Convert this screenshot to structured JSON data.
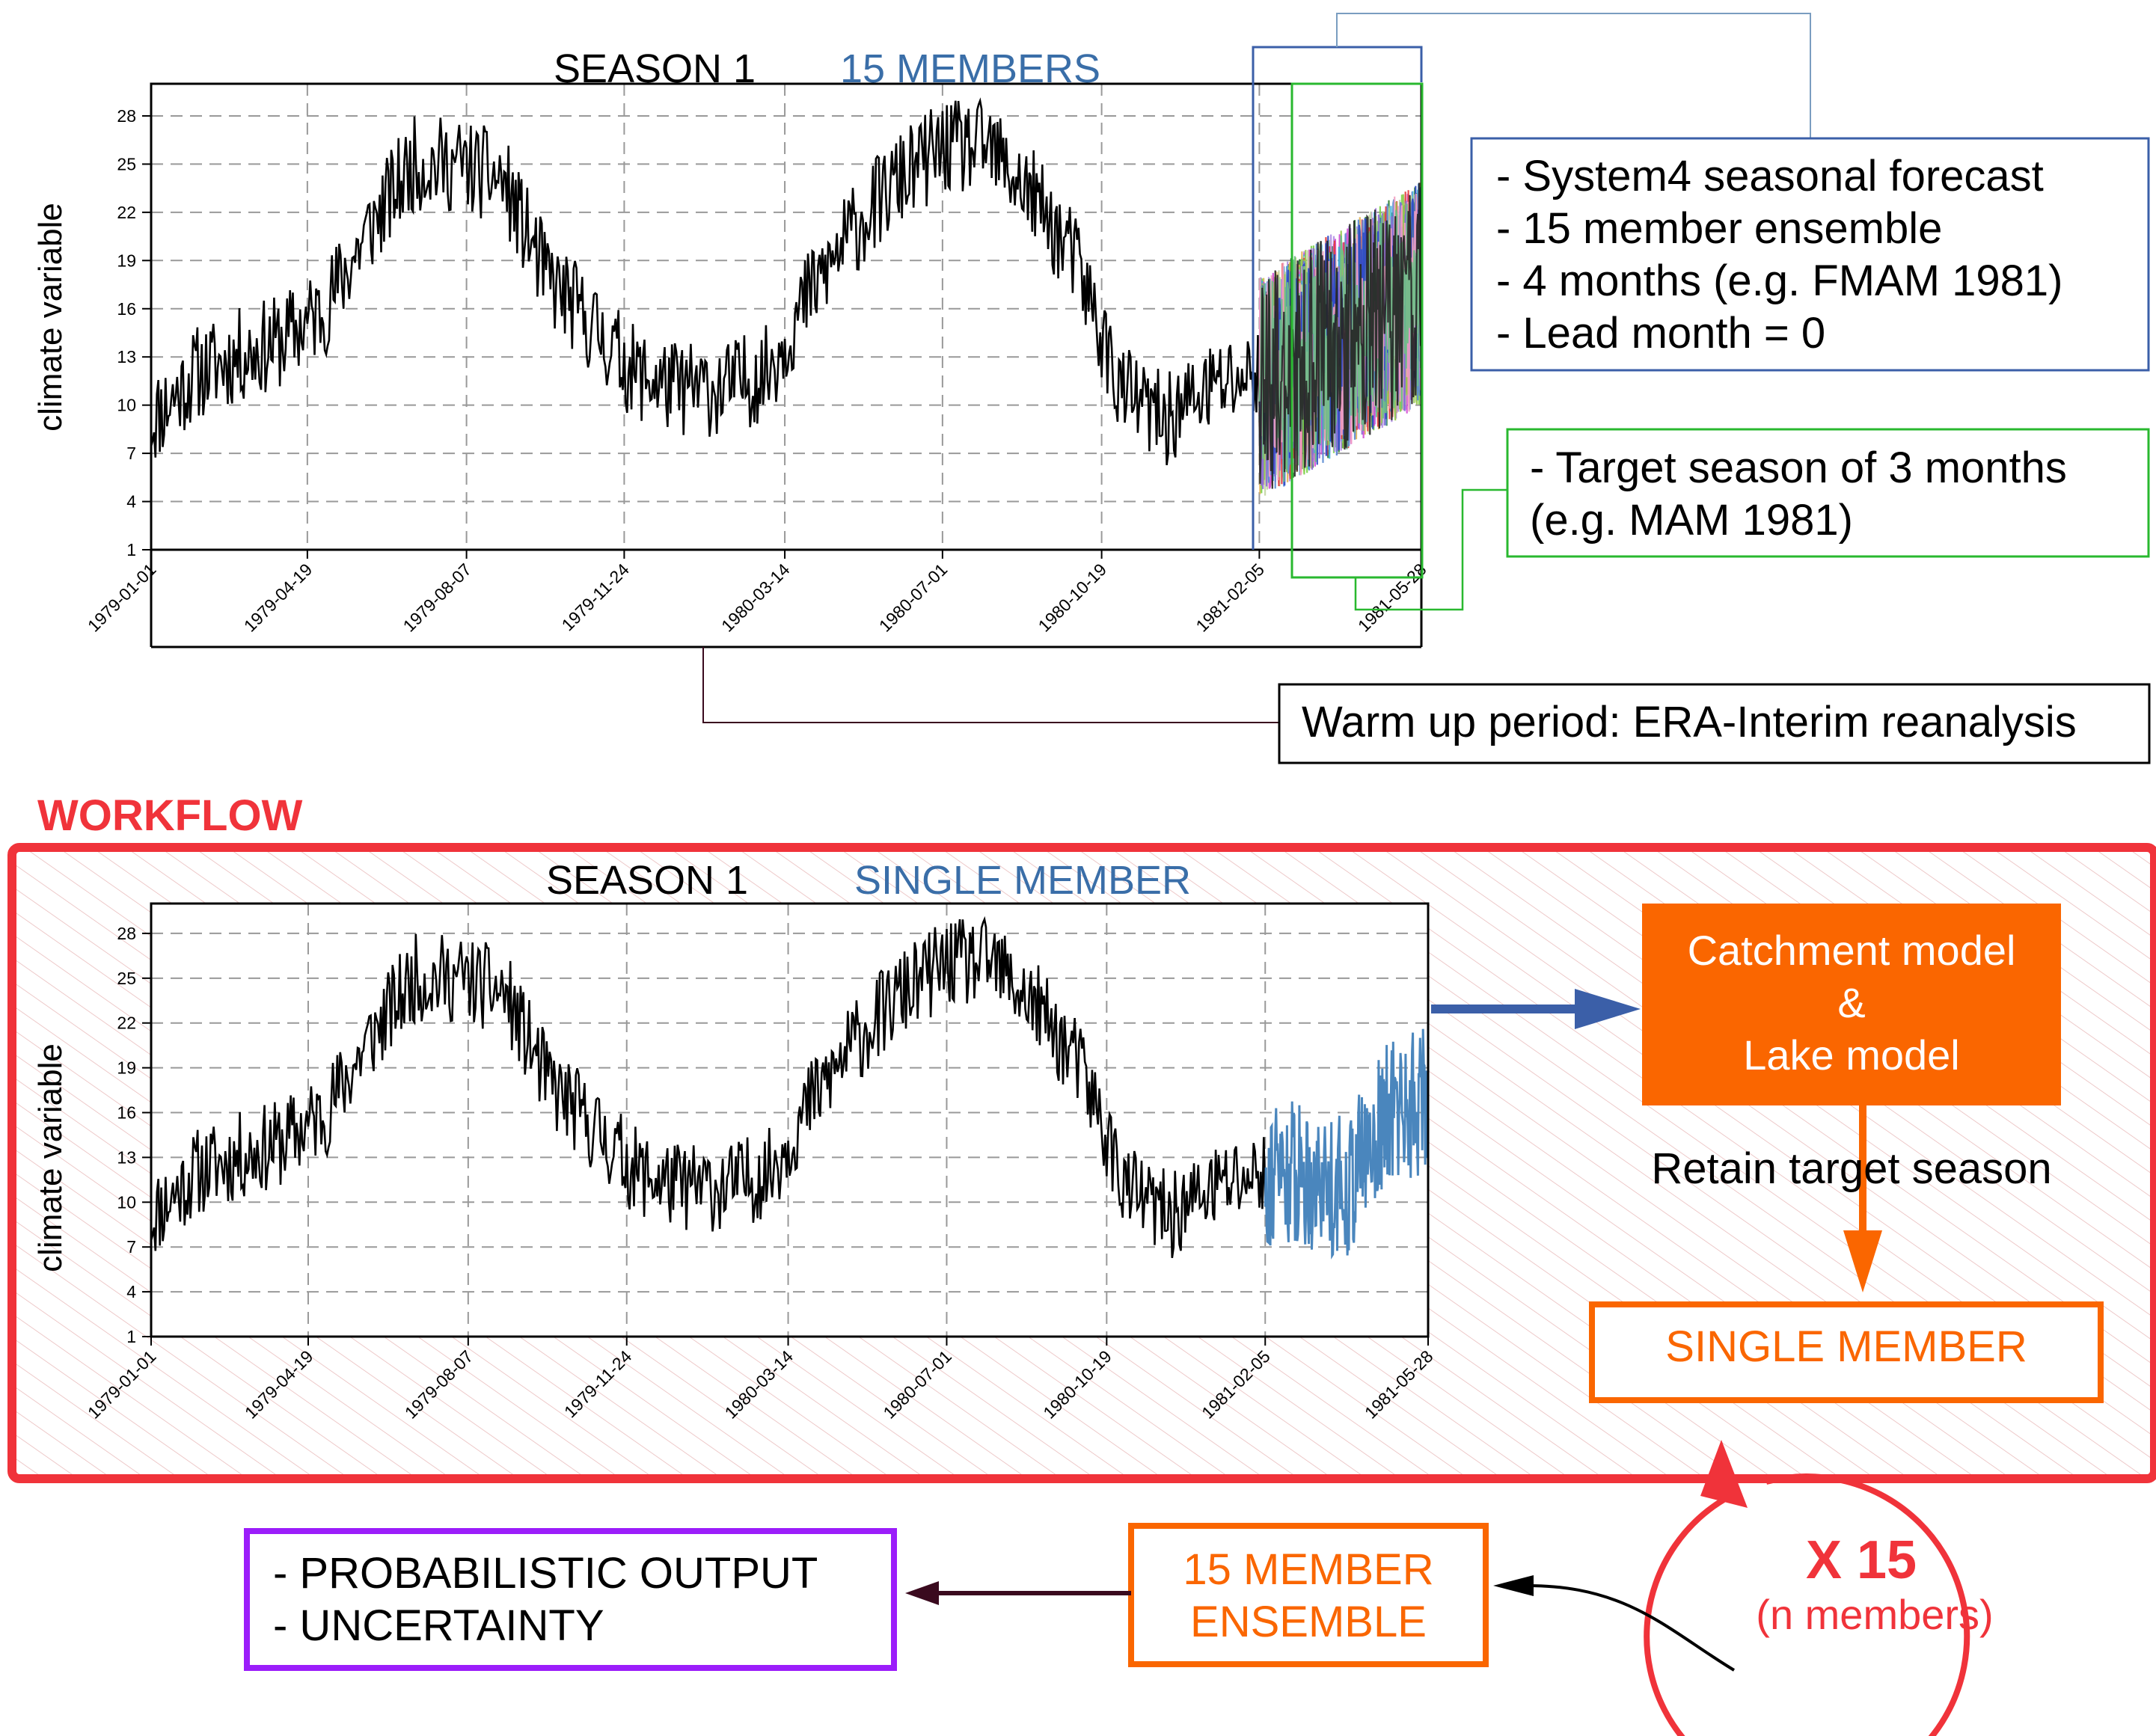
{
  "top_panel": {
    "title_left": "SEASON 1",
    "title_right": "15 MEMBERS",
    "ylabel": "climate variable",
    "annotations": {
      "forecast_lines": [
        "- System4 seasonal forecast",
        "- 15 member ensemble",
        "- 4 months (e.g. FMAM 1981)",
        "- Lead month = 0"
      ],
      "target_lines": [
        "- Target season of 3 months",
        "(e.g. MAM 1981)"
      ],
      "warmup": "Warm up period: ERA-Interim reanalysis"
    }
  },
  "workflow": {
    "label": "WORKFLOW",
    "title_left": "SEASON 1",
    "title_right": "SINGLE MEMBER",
    "ylabel": "climate variable",
    "model_lines": [
      "Catchment model",
      "&",
      "Lake model"
    ],
    "retain": "Retain target season",
    "single_member": "SINGLE MEMBER",
    "loop_x": "X 15",
    "loop_n": "(n members)",
    "ensemble_lines": [
      "15 MEMBER",
      "ENSEMBLE"
    ],
    "output_lines": [
      "- PROBABILISTIC OUTPUT",
      "- UNCERTAINTY"
    ]
  },
  "colors": {
    "red": "#f0333a",
    "orange": "#fa6600",
    "blue_member": "#4a86bd",
    "title_blue": "#3a6ea8",
    "box_blue": "#3b5fa8",
    "box_green": "#29b82f",
    "purple": "#9b1dfa",
    "dark_maroon": "#3a0a1e"
  },
  "chart_data": [
    {
      "type": "line",
      "title": "SEASON 1    15 MEMBERS",
      "ylabel": "climate variable",
      "xlabel": "",
      "ylim": [
        1,
        30
      ],
      "yticks": [
        1,
        4,
        7,
        10,
        13,
        16,
        19,
        22,
        25,
        28
      ],
      "x_tick_labels": [
        "1979-01-01",
        "1979-04-19",
        "1979-08-07",
        "1979-11-24",
        "1980-03-14",
        "1980-07-01",
        "1980-10-19",
        "1981-02-05",
        "1981-05-28"
      ],
      "grid": true,
      "series": [
        {
          "x": [
            "1979-01-01",
            "1979-02-01",
            "1979-03-01",
            "1979-04-01",
            "1979-05-01",
            "1979-06-01",
            "1979-07-01",
            "1979-08-01",
            "1979-09-01",
            "1979-10-01",
            "1979-11-01",
            "1979-12-01",
            "1980-01-01",
            "1980-02-01",
            "1980-03-01",
            "1980-04-01",
            "1980-05-01",
            "1980-06-01",
            "1980-07-01",
            "1980-08-01",
            "1980-09-01",
            "1980-10-01",
            "1980-11-01",
            "1980-12-01",
            "1981-01-01",
            "1981-02-01"
          ],
          "values": [
            9,
            12,
            13,
            14,
            16,
            21,
            25,
            25,
            24,
            18,
            15,
            12,
            11,
            11,
            12,
            17,
            21,
            24,
            26,
            26,
            23,
            19,
            11,
            9,
            11,
            12
          ]
        }
      ],
      "ensemble": {
        "members": 15,
        "from": "1981-02-05",
        "to": "1981-05-28",
        "range": [
          3,
          25
        ]
      }
    },
    {
      "type": "line",
      "title": "SEASON 1    SINGLE MEMBER",
      "ylabel": "climate variable",
      "xlabel": "",
      "ylim": [
        1,
        30
      ],
      "yticks": [
        1,
        4,
        7,
        10,
        13,
        16,
        19,
        22,
        25,
        28
      ],
      "x_tick_labels": [
        "1979-01-01",
        "1979-04-19",
        "1979-08-07",
        "1979-11-24",
        "1980-03-14",
        "1980-07-01",
        "1980-10-19",
        "1981-02-05",
        "1981-05-28"
      ],
      "grid": true,
      "series": [
        {
          "x": [
            "1979-01-01",
            "1979-02-01",
            "1979-03-01",
            "1979-04-01",
            "1979-05-01",
            "1979-06-01",
            "1979-07-01",
            "1979-08-01",
            "1979-09-01",
            "1979-10-01",
            "1979-11-01",
            "1979-12-01",
            "1980-01-01",
            "1980-02-01",
            "1980-03-01",
            "1980-04-01",
            "1980-05-01",
            "1980-06-01",
            "1980-07-01",
            "1980-08-01",
            "1980-09-01",
            "1980-10-01",
            "1980-11-01",
            "1980-12-01",
            "1981-01-01",
            "1981-02-01"
          ],
          "values": [
            9,
            12,
            13,
            14,
            16,
            21,
            25,
            25,
            24,
            18,
            15,
            12,
            11,
            11,
            12,
            17,
            21,
            24,
            26,
            26,
            23,
            19,
            11,
            9,
            11,
            12
          ]
        },
        {
          "x": [
            "1981-02-05",
            "1981-03-01",
            "1981-04-01",
            "1981-05-01",
            "1981-05-28"
          ],
          "values": [
            12,
            12,
            11,
            16,
            17
          ]
        }
      ]
    }
  ]
}
